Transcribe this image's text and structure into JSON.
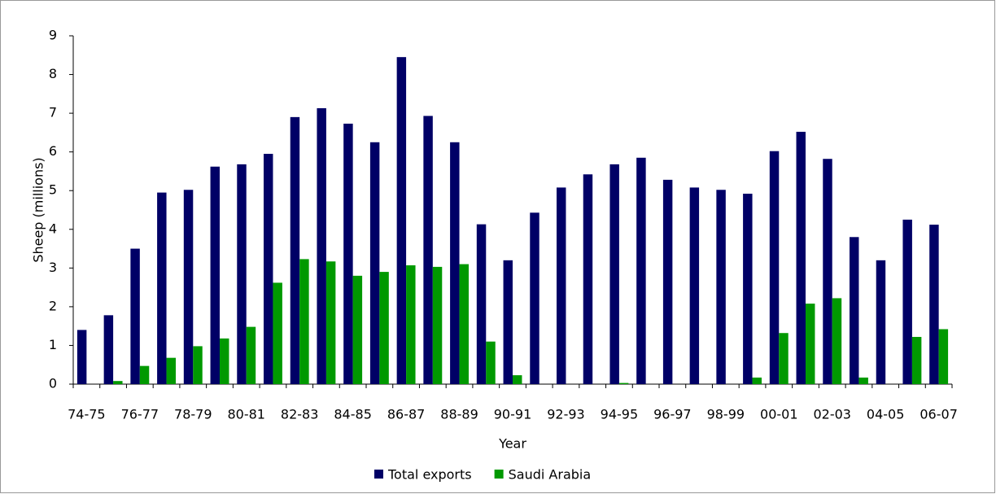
{
  "chart_data": {
    "type": "bar",
    "xlabel": "Year",
    "ylabel": "Sheep (millions)",
    "categories": [
      "74-75",
      null,
      "76-77",
      null,
      "78-79",
      null,
      "80-81",
      null,
      "82-83",
      null,
      "84-85",
      null,
      "86-87",
      null,
      "88-89",
      null,
      "90-91",
      null,
      "92-93",
      null,
      "94-95",
      null,
      "96-97",
      null,
      "98-99",
      null,
      "00-01",
      null,
      "02-03",
      null,
      "04-05",
      null,
      "06-07"
    ],
    "series": [
      {
        "name": "Total exports",
        "color": "#000066",
        "values": [
          1.4,
          1.78,
          3.5,
          4.95,
          5.02,
          5.62,
          5.68,
          5.95,
          6.9,
          7.13,
          6.73,
          6.25,
          8.45,
          6.93,
          6.25,
          4.13,
          3.2,
          4.43,
          5.08,
          5.42,
          5.68,
          5.85,
          5.28,
          5.08,
          5.02,
          4.92,
          6.02,
          6.52,
          5.82,
          3.8,
          3.2,
          4.25,
          4.12
        ]
      },
      {
        "name": "Saudi Arabia",
        "color": "#009900",
        "values": [
          0,
          0.08,
          0.47,
          0.68,
          0.98,
          1.18,
          1.48,
          2.62,
          3.23,
          3.17,
          2.8,
          2.9,
          3.07,
          3.03,
          3.1,
          1.1,
          0.23,
          0,
          0,
          0,
          0.03,
          0,
          0,
          0,
          0,
          0.17,
          1.32,
          2.08,
          2.22,
          0.17,
          0,
          1.22,
          1.42
        ]
      }
    ],
    "ylim": [
      0,
      9
    ],
    "yticks": [
      0,
      1,
      2,
      3,
      4,
      5,
      6,
      7,
      8,
      9
    ],
    "legend": "bottom"
  }
}
